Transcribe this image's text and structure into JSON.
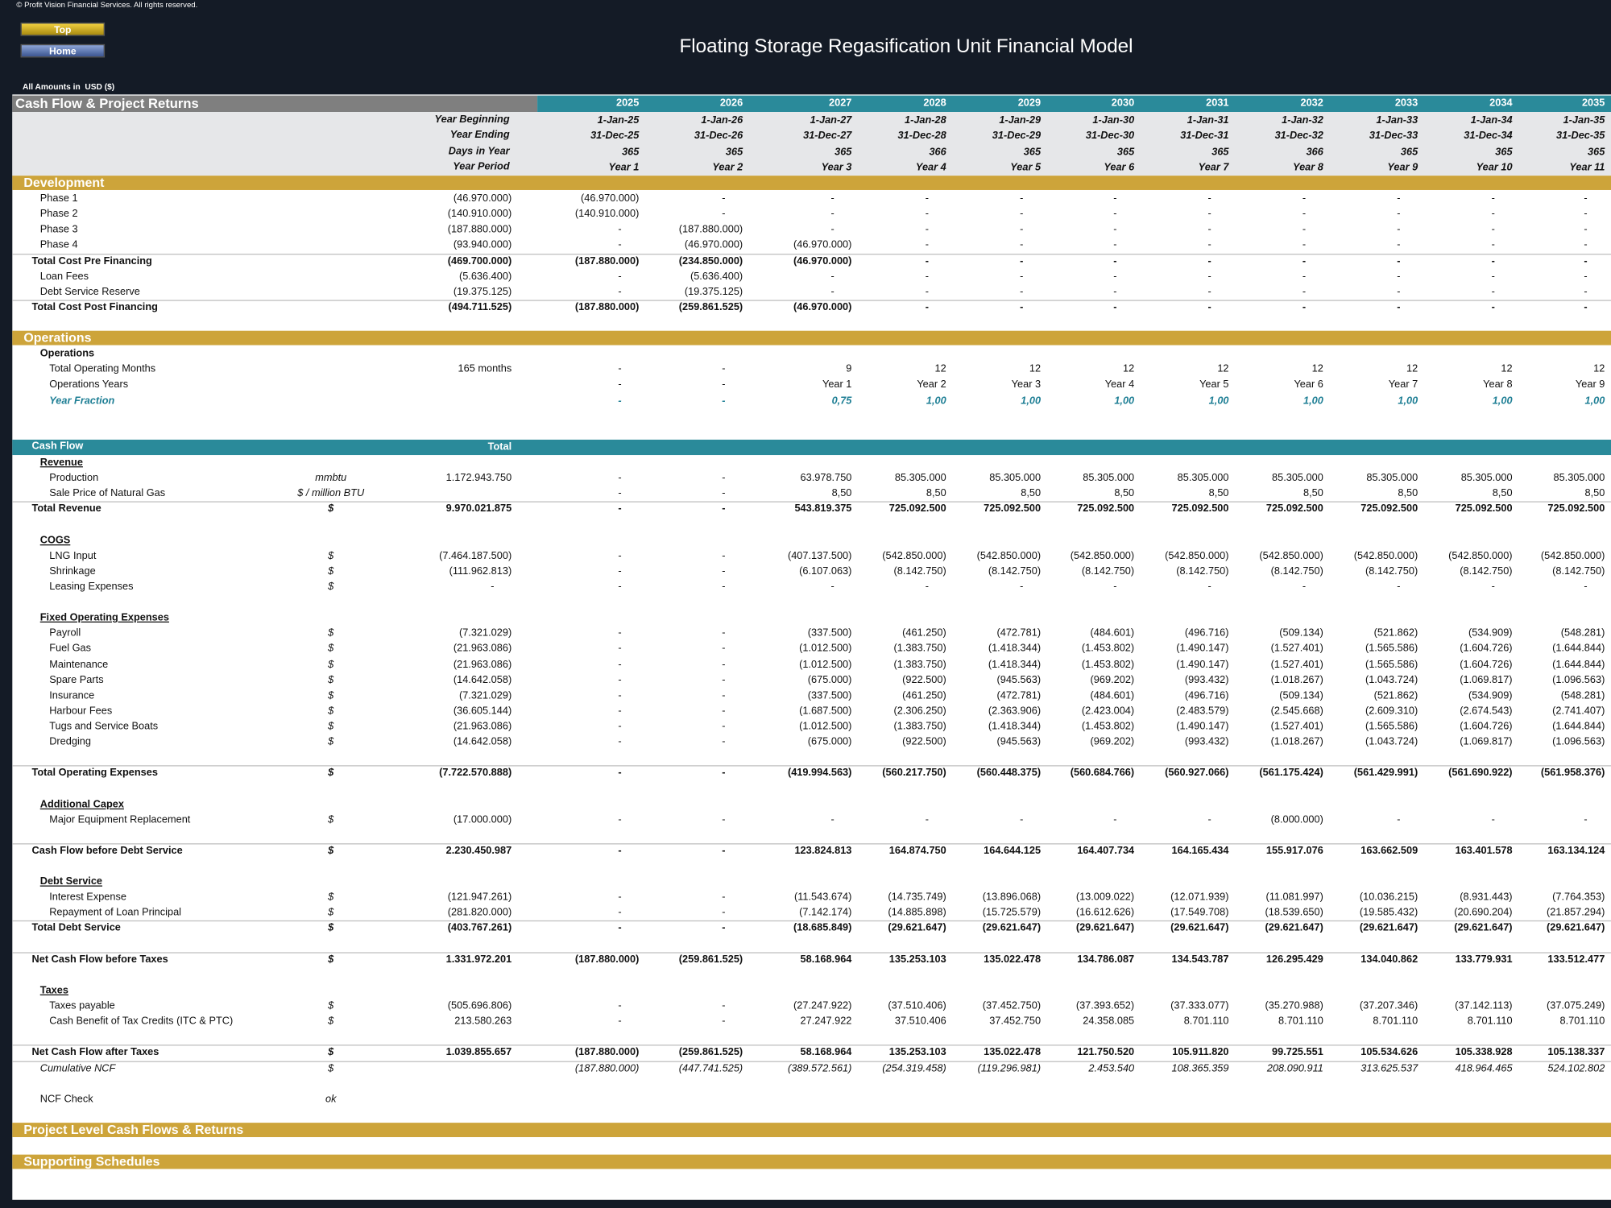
{
  "copyright": "© Profit Vision Financial Services. All rights reserved.",
  "buttons": [
    "Top",
    "Home"
  ],
  "title": "Floating Storage Regasification Unit Financial Model",
  "currency_note": "All Amounts in  USD ($)",
  "sheet": {
    "title": "Cash Flow & Project Returns",
    "years": [
      "2025",
      "2026",
      "2027",
      "2028",
      "2029",
      "2030",
      "2031",
      "2032",
      "2033",
      "2034",
      "2035"
    ]
  },
  "timeline": [
    {
      "label": "Year Beginning",
      "values": [
        "1-Jan-25",
        "1-Jan-26",
        "1-Jan-27",
        "1-Jan-28",
        "1-Jan-29",
        "1-Jan-30",
        "1-Jan-31",
        "1-Jan-32",
        "1-Jan-33",
        "1-Jan-34",
        "1-Jan-35"
      ]
    },
    {
      "label": "Year Ending",
      "values": [
        "31-Dec-25",
        "31-Dec-26",
        "31-Dec-27",
        "31-Dec-28",
        "31-Dec-29",
        "31-Dec-30",
        "31-Dec-31",
        "31-Dec-32",
        "31-Dec-33",
        "31-Dec-34",
        "31-Dec-35"
      ]
    },
    {
      "label": "Days in Year",
      "values": [
        "365",
        "365",
        "365",
        "366",
        "365",
        "365",
        "365",
        "366",
        "365",
        "365",
        "365"
      ]
    },
    {
      "label": "Year Period",
      "values": [
        "Year 1",
        "Year 2",
        "Year 3",
        "Year 4",
        "Year 5",
        "Year 6",
        "Year 7",
        "Year 8",
        "Year 9",
        "Year 10",
        "Year 11"
      ]
    }
  ],
  "sections": [
    {
      "title": "Development",
      "rows": [
        {
          "label": "Phase 1",
          "total": "(46.970.000)",
          "values": [
            "(46.970.000)",
            "-",
            "-",
            "-",
            "-",
            "-",
            "-",
            "-",
            "-",
            "-",
            "-"
          ]
        },
        {
          "label": "Phase 2",
          "total": "(140.910.000)",
          "values": [
            "(140.910.000)",
            "-",
            "-",
            "-",
            "-",
            "-",
            "-",
            "-",
            "-",
            "-",
            "-"
          ]
        },
        {
          "label": "Phase 3",
          "total": "(187.880.000)",
          "values": [
            "-",
            "(187.880.000)",
            "-",
            "-",
            "-",
            "-",
            "-",
            "-",
            "-",
            "-",
            "-"
          ]
        },
        {
          "label": "Phase 4",
          "total": "(93.940.000)",
          "values": [
            "-",
            "(46.970.000)",
            "(46.970.000)",
            "-",
            "-",
            "-",
            "-",
            "-",
            "-",
            "-",
            "-"
          ]
        },
        {
          "label": "Total Cost Pre Financing",
          "kind": "bold",
          "total": "(469.700.000)",
          "values": [
            "(187.880.000)",
            "(234.850.000)",
            "(46.970.000)",
            "-",
            "-",
            "-",
            "-",
            "-",
            "-",
            "-",
            "-"
          ]
        },
        {
          "label": "Loan Fees",
          "total": "(5.636.400)",
          "values": [
            "-",
            "(5.636.400)",
            "-",
            "-",
            "-",
            "-",
            "-",
            "-",
            "-",
            "-",
            "-"
          ]
        },
        {
          "label": "Debt Service Reserve",
          "total": "(19.375.125)",
          "values": [
            "-",
            "(19.375.125)",
            "-",
            "-",
            "-",
            "-",
            "-",
            "-",
            "-",
            "-",
            "-"
          ]
        },
        {
          "label": "Total Cost Post Financing",
          "kind": "bold",
          "total": "(494.711.525)",
          "values": [
            "(187.880.000)",
            "(259.861.525)",
            "(46.970.000)",
            "-",
            "-",
            "-",
            "-",
            "-",
            "-",
            "-",
            "-"
          ]
        }
      ]
    },
    {
      "title": "Operations",
      "rows": [
        {
          "label": "Operations",
          "kind": "heading"
        },
        {
          "label": "Total Operating Months",
          "total": "165 months",
          "values": [
            "-",
            "-",
            "9",
            "12",
            "12",
            "12",
            "12",
            "12",
            "12",
            "12",
            "12"
          ]
        },
        {
          "label": "Operations Years",
          "values": [
            "-",
            "-",
            "Year 1",
            "Year 2",
            "Year 3",
            "Year 4",
            "Year 5",
            "Year 6",
            "Year 7",
            "Year 8",
            "Year 9"
          ]
        },
        {
          "label": "Year Fraction",
          "kind": "fraction",
          "values": [
            "-",
            "-",
            "0,75",
            "1,00",
            "1,00",
            "1,00",
            "1,00",
            "1,00",
            "1,00",
            "1,00",
            "1,00"
          ]
        }
      ]
    },
    {
      "title": "Cash Flow",
      "total_header": "Total",
      "rows": [
        {
          "label": "Revenue",
          "kind": "underline"
        },
        {
          "label": "Production",
          "unit": "mmbtu",
          "total": "1.172.943.750",
          "values": [
            "-",
            "-",
            "63.978.750",
            "85.305.000",
            "85.305.000",
            "85.305.000",
            "85.305.000",
            "85.305.000",
            "85.305.000",
            "85.305.000",
            "85.305.000"
          ]
        },
        {
          "label": "Sale Price of Natural Gas",
          "unit": "$ / million BTU",
          "values": [
            "-",
            "-",
            "8,50",
            "8,50",
            "8,50",
            "8,50",
            "8,50",
            "8,50",
            "8,50",
            "8,50",
            "8,50"
          ]
        },
        {
          "label": "Total Revenue",
          "kind": "bold",
          "unit": "$",
          "total": "9.970.021.875",
          "values": [
            "-",
            "-",
            "543.819.375",
            "725.092.500",
            "725.092.500",
            "725.092.500",
            "725.092.500",
            "725.092.500",
            "725.092.500",
            "725.092.500",
            "725.092.500"
          ]
        },
        {
          "label": "COGS",
          "kind": "underline"
        },
        {
          "label": "LNG Input",
          "unit": "$",
          "total": "(7.464.187.500)",
          "values": [
            "-",
            "-",
            "(407.137.500)",
            "(542.850.000)",
            "(542.850.000)",
            "(542.850.000)",
            "(542.850.000)",
            "(542.850.000)",
            "(542.850.000)",
            "(542.850.000)",
            "(542.850.000)"
          ]
        },
        {
          "label": "Shrinkage",
          "unit": "$",
          "total": "(111.962.813)",
          "values": [
            "-",
            "-",
            "(6.107.063)",
            "(8.142.750)",
            "(8.142.750)",
            "(8.142.750)",
            "(8.142.750)",
            "(8.142.750)",
            "(8.142.750)",
            "(8.142.750)",
            "(8.142.750)"
          ]
        },
        {
          "label": "Leasing Expenses",
          "unit": "$",
          "total": "-",
          "values": [
            "-",
            "-",
            "-",
            "-",
            "-",
            "-",
            "-",
            "-",
            "-",
            "-",
            "-"
          ]
        },
        {
          "label": "Fixed Operating Expenses",
          "kind": "underline"
        },
        {
          "label": "Payroll",
          "unit": "$",
          "total": "(7.321.029)",
          "values": [
            "-",
            "-",
            "(337.500)",
            "(461.250)",
            "(472.781)",
            "(484.601)",
            "(496.716)",
            "(509.134)",
            "(521.862)",
            "(534.909)",
            "(548.281)"
          ]
        },
        {
          "label": "Fuel Gas",
          "unit": "$",
          "total": "(21.963.086)",
          "values": [
            "-",
            "-",
            "(1.012.500)",
            "(1.383.750)",
            "(1.418.344)",
            "(1.453.802)",
            "(1.490.147)",
            "(1.527.401)",
            "(1.565.586)",
            "(1.604.726)",
            "(1.644.844)"
          ]
        },
        {
          "label": "Maintenance",
          "unit": "$",
          "total": "(21.963.086)",
          "values": [
            "-",
            "-",
            "(1.012.500)",
            "(1.383.750)",
            "(1.418.344)",
            "(1.453.802)",
            "(1.490.147)",
            "(1.527.401)",
            "(1.565.586)",
            "(1.604.726)",
            "(1.644.844)"
          ]
        },
        {
          "label": "Spare Parts",
          "unit": "$",
          "total": "(14.642.058)",
          "values": [
            "-",
            "-",
            "(675.000)",
            "(922.500)",
            "(945.563)",
            "(969.202)",
            "(993.432)",
            "(1.018.267)",
            "(1.043.724)",
            "(1.069.817)",
            "(1.096.563)"
          ]
        },
        {
          "label": "Insurance",
          "unit": "$",
          "total": "(7.321.029)",
          "values": [
            "-",
            "-",
            "(337.500)",
            "(461.250)",
            "(472.781)",
            "(484.601)",
            "(496.716)",
            "(509.134)",
            "(521.862)",
            "(534.909)",
            "(548.281)"
          ]
        },
        {
          "label": "Harbour Fees",
          "unit": "$",
          "total": "(36.605.144)",
          "values": [
            "-",
            "-",
            "(1.687.500)",
            "(2.306.250)",
            "(2.363.906)",
            "(2.423.004)",
            "(2.483.579)",
            "(2.545.668)",
            "(2.609.310)",
            "(2.674.543)",
            "(2.741.407)"
          ]
        },
        {
          "label": "Tugs and Service Boats",
          "unit": "$",
          "total": "(21.963.086)",
          "values": [
            "-",
            "-",
            "(1.012.500)",
            "(1.383.750)",
            "(1.418.344)",
            "(1.453.802)",
            "(1.490.147)",
            "(1.527.401)",
            "(1.565.586)",
            "(1.604.726)",
            "(1.644.844)"
          ]
        },
        {
          "label": "Dredging",
          "unit": "$",
          "total": "(14.642.058)",
          "values": [
            "-",
            "-",
            "(675.000)",
            "(922.500)",
            "(945.563)",
            "(969.202)",
            "(993.432)",
            "(1.018.267)",
            "(1.043.724)",
            "(1.069.817)",
            "(1.096.563)"
          ]
        },
        {
          "label": "Total Operating Expenses",
          "kind": "bold",
          "unit": "$",
          "total": "(7.722.570.888)",
          "values": [
            "-",
            "-",
            "(419.994.563)",
            "(560.217.750)",
            "(560.448.375)",
            "(560.684.766)",
            "(560.927.066)",
            "(561.175.424)",
            "(561.429.991)",
            "(561.690.922)",
            "(561.958.376)"
          ]
        },
        {
          "label": "Additional Capex",
          "kind": "underline"
        },
        {
          "label": "Major Equipment Replacement",
          "unit": "$",
          "total": "(17.000.000)",
          "values": [
            "-",
            "-",
            "-",
            "-",
            "-",
            "-",
            "-",
            "(8.000.000)",
            "-",
            "-",
            "-"
          ]
        },
        {
          "label": "Cash Flow before Debt Service",
          "kind": "bold",
          "unit": "$",
          "total": "2.230.450.987",
          "values": [
            "-",
            "-",
            "123.824.813",
            "164.874.750",
            "164.644.125",
            "164.407.734",
            "164.165.434",
            "155.917.076",
            "163.662.509",
            "163.401.578",
            "163.134.124"
          ]
        },
        {
          "label": "Debt Service",
          "kind": "underline"
        },
        {
          "label": "Interest Expense",
          "unit": "$",
          "total": "(121.947.261)",
          "values": [
            "-",
            "-",
            "(11.543.674)",
            "(14.735.749)",
            "(13.896.068)",
            "(13.009.022)",
            "(12.071.939)",
            "(11.081.997)",
            "(10.036.215)",
            "(8.931.443)",
            "(7.764.353)"
          ]
        },
        {
          "label": "Repayment of Loan Principal",
          "unit": "$",
          "total": "(281.820.000)",
          "values": [
            "-",
            "-",
            "(7.142.174)",
            "(14.885.898)",
            "(15.725.579)",
            "(16.612.626)",
            "(17.549.708)",
            "(18.539.650)",
            "(19.585.432)",
            "(20.690.204)",
            "(21.857.294)"
          ]
        },
        {
          "label": "Total Debt Service",
          "kind": "bold",
          "unit": "$",
          "total": "(403.767.261)",
          "values": [
            "-",
            "-",
            "(18.685.849)",
            "(29.621.647)",
            "(29.621.647)",
            "(29.621.647)",
            "(29.621.647)",
            "(29.621.647)",
            "(29.621.647)",
            "(29.621.647)",
            "(29.621.647)"
          ]
        },
        {
          "label": "Net Cash Flow before Taxes",
          "kind": "bold",
          "unit": "$",
          "total": "1.331.972.201",
          "values": [
            "(187.880.000)",
            "(259.861.525)",
            "58.168.964",
            "135.253.103",
            "135.022.478",
            "134.786.087",
            "134.543.787",
            "126.295.429",
            "134.040.862",
            "133.779.931",
            "133.512.477"
          ]
        },
        {
          "label": "Taxes",
          "kind": "underline"
        },
        {
          "label": "Taxes payable",
          "unit": "$",
          "total": "(505.696.806)",
          "values": [
            "-",
            "-",
            "(27.247.922)",
            "(37.510.406)",
            "(37.452.750)",
            "(37.393.652)",
            "(37.333.077)",
            "(35.270.988)",
            "(37.207.346)",
            "(37.142.113)",
            "(37.075.249)"
          ]
        },
        {
          "label": "Cash Benefit of Tax Credits (ITC & PTC)",
          "unit": "$",
          "total": "213.580.263",
          "values": [
            "-",
            "-",
            "27.247.922",
            "37.510.406",
            "37.452.750",
            "24.358.085",
            "8.701.110",
            "8.701.110",
            "8.701.110",
            "8.701.110",
            "8.701.110"
          ]
        },
        {
          "label": "Net Cash Flow after Taxes",
          "kind": "bold",
          "unit": "$",
          "total": "1.039.855.657",
          "values": [
            "(187.880.000)",
            "(259.861.525)",
            "58.168.964",
            "135.253.103",
            "135.022.478",
            "121.750.520",
            "105.911.820",
            "99.725.551",
            "105.534.626",
            "105.338.928",
            "105.138.337"
          ]
        },
        {
          "label": "Cumulative NCF",
          "kind": "italic",
          "unit": "$",
          "values": [
            "(187.880.000)",
            "(447.741.525)",
            "(389.572.561)",
            "(254.319.458)",
            "(119.296.981)",
            "2.453.540",
            "108.365.359",
            "208.090.911",
            "313.625.537",
            "418.964.465",
            "524.102.802"
          ]
        },
        {
          "label": "NCF Check",
          "kind": "note",
          "unit": "ok"
        }
      ]
    },
    {
      "title": "Project Level Cash Flows & Returns"
    },
    {
      "title": "Supporting Schedules"
    }
  ]
}
